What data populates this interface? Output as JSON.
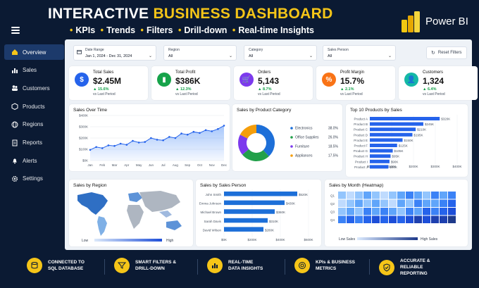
{
  "hero": {
    "title_white": "INTERACTIVE",
    "title_yellow": "BUSINESS DASHBOARD",
    "subtitle_items": [
      "KPIs",
      "Trends",
      "Filters",
      "Drill-down",
      "Real-time Insights"
    ],
    "brand": "Power BI"
  },
  "colors": {
    "accent": "#f5c518",
    "navy": "#0b1a33",
    "blue": "#2563eb"
  },
  "sidebar": {
    "items": [
      {
        "label": "Overview",
        "icon": "home-icon",
        "active": true
      },
      {
        "label": "Sales",
        "icon": "bar-chart-icon"
      },
      {
        "label": "Customers",
        "icon": "users-icon"
      },
      {
        "label": "Products",
        "icon": "box-icon"
      },
      {
        "label": "Regions",
        "icon": "globe-icon"
      },
      {
        "label": "Reports",
        "icon": "document-icon"
      },
      {
        "label": "Alerts",
        "icon": "bell-icon"
      },
      {
        "label": "Settings",
        "icon": "gear-icon"
      }
    ]
  },
  "filters": {
    "date": {
      "label": "Date Range",
      "value": "Jan 1, 2024 - Dec 31, 2024"
    },
    "region": {
      "label": "Region",
      "value": "All"
    },
    "category": {
      "label": "Category",
      "value": "All"
    },
    "person": {
      "label": "Sales Person",
      "value": "All"
    },
    "reset": "Reset Filters"
  },
  "kpis": [
    {
      "label": "Total Sales",
      "value": "$2.45M",
      "change": "▲ 15.6%",
      "sub": "vs Last Period",
      "color": "#2563eb",
      "icon": "$"
    },
    {
      "label": "Total Profit",
      "value": "$386K",
      "change": "▲ 12.3%",
      "sub": "vs Last Period",
      "color": "#16a34a",
      "icon": "▮"
    },
    {
      "label": "Orders",
      "value": "5,143",
      "change": "▲ 8.7%",
      "sub": "vs Last Period",
      "color": "#7c3aed",
      "icon": "🛒"
    },
    {
      "label": "Profit Margin",
      "value": "15.7%",
      "change": "▲ 2.1%",
      "sub": "vs Last Period",
      "color": "#f97316",
      "icon": "%"
    },
    {
      "label": "Customers",
      "value": "1,324",
      "change": "▲ 6.4%",
      "sub": "vs Last Period",
      "color": "#14b8a6",
      "icon": "👤"
    }
  ],
  "panels": {
    "sales_over_time": "Sales Over Time",
    "by_category": "Sales by Product Category",
    "top10": "Top 10 Products by Sales",
    "by_region": "Sales by Region",
    "by_person": "Sales by Sales Person",
    "heatmap": "Sales by Month (Heatmap)"
  },
  "chart_data": [
    {
      "type": "line",
      "title": "Sales Over Time",
      "categories": [
        "Jan",
        "Feb",
        "Mar",
        "Apr",
        "May",
        "Jun",
        "Jul",
        "Aug",
        "Sep",
        "Oct",
        "Nov",
        "Dec"
      ],
      "x": [
        0,
        0.5,
        1,
        1.5,
        2,
        2.5,
        3,
        3.5,
        4,
        4.5,
        5,
        5.5,
        6,
        6.5,
        7,
        7.5,
        8,
        8.5,
        9,
        9.5,
        10,
        10.5,
        11
      ],
      "values": [
        95,
        120,
        110,
        135,
        130,
        150,
        140,
        175,
        160,
        165,
        200,
        185,
        180,
        210,
        200,
        240,
        230,
        255,
        245,
        270,
        260,
        280,
        310
      ],
      "yticks": [
        "$0K",
        "$100K",
        "$200K",
        "$300K",
        "$400K"
      ],
      "ylim": [
        0,
        400
      ]
    },
    {
      "type": "pie",
      "title": "Sales by Product Category",
      "series": [
        {
          "name": "Electronics",
          "value": 38.0,
          "label": "38.0%",
          "color": "#1d6fd8"
        },
        {
          "name": "Office Supplies",
          "value": 26.0,
          "label": "26.0%",
          "color": "#22a04a"
        },
        {
          "name": "Furniture",
          "value": 18.5,
          "label": "18.5%",
          "color": "#7c3aed"
        },
        {
          "name": "Appliances",
          "value": 17.5,
          "label": "17.5%",
          "color": "#f59e0b"
        }
      ]
    },
    {
      "type": "bar",
      "title": "Top 10 Products by Sales",
      "categories": [
        "Product A",
        "Product B",
        "Product C",
        "Product D",
        "Product E",
        "Product F",
        "Product G",
        "Product H",
        "Product I",
        "Product J"
      ],
      "values": [
        320,
        245,
        210,
        195,
        150,
        125,
        105,
        95,
        90,
        85
      ],
      "labels": [
        "$320K",
        "$245K",
        "$210K",
        "$195K",
        "$150K",
        "$125K",
        "$105K",
        "$95K",
        "$90K",
        "$85K"
      ],
      "xticks": [
        "$0K",
        "$100K",
        "$200K",
        "$300K",
        "$400K"
      ],
      "xlim": [
        0,
        400
      ]
    },
    {
      "type": "bar",
      "title": "Sales by Sales Person",
      "categories": [
        "John Smith",
        "Emma Johnson",
        "Michael Brown",
        "Sarah Davis",
        "David Wilson"
      ],
      "values": [
        520,
        430,
        360,
        310,
        280
      ],
      "labels": [
        "$520K",
        "$430K",
        "$360K",
        "$310K",
        "$280K"
      ],
      "xticks": [
        "$0K",
        "$200K",
        "$400K",
        "$600K"
      ],
      "xlim": [
        0,
        600
      ]
    },
    {
      "type": "heatmap",
      "title": "Sales by Month (Heatmap)",
      "rows": [
        "Q1",
        "Q2",
        "Q3",
        "Q4"
      ],
      "values": [
        [
          3,
          2,
          3,
          4,
          3,
          2,
          3,
          4,
          5,
          4,
          3,
          5,
          4,
          5
        ],
        [
          2,
          3,
          4,
          3,
          4,
          3,
          2,
          4,
          3,
          5,
          4,
          4,
          5,
          6
        ],
        [
          3,
          4,
          3,
          5,
          4,
          5,
          4,
          3,
          5,
          4,
          6,
          5,
          6,
          7
        ],
        [
          5,
          6,
          5,
          6,
          7,
          6,
          7,
          6,
          7,
          8,
          7,
          8,
          8,
          9
        ]
      ],
      "legend_low": "Low Sales",
      "legend_high": "High Sales"
    }
  ],
  "map": {
    "legend_low": "Low",
    "legend_high": "High"
  },
  "features": [
    {
      "line1": "CONNECTED TO",
      "line2": "SQL DATABASE",
      "icon": "database-icon"
    },
    {
      "line1": "SMART FILTERS &",
      "line2": "DRILL-DOWN",
      "icon": "filter-icon"
    },
    {
      "line1": "REAL-TIME",
      "line2": "DATA INSIGHTS",
      "icon": "chart-icon"
    },
    {
      "line1": "KPIs & BUSINESS",
      "line2": "METRICS",
      "icon": "target-icon"
    },
    {
      "line1": "ACCURATE & RELIABLE",
      "line2": "REPORTING",
      "icon": "shield-check-icon"
    }
  ]
}
